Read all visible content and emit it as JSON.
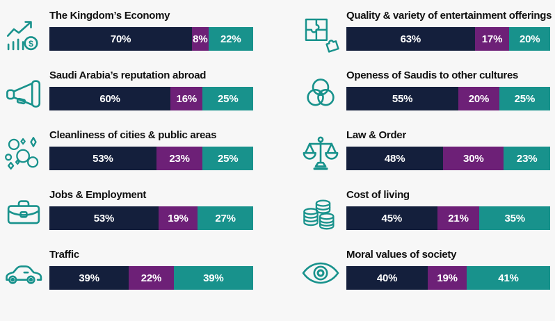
{
  "colors": {
    "background": "#F7F7F7",
    "title_text": "#101010",
    "value_text": "#FFFFFF",
    "icon": "#18928C",
    "segments": [
      "#141F3C",
      "#6D2077",
      "#18928C"
    ]
  },
  "chart_data": {
    "type": "bar",
    "variant": "horizontal-stacked-percentage",
    "legend_position": "none",
    "axes": "none",
    "value_suffix": "%",
    "columns": [
      {
        "name": "left",
        "rows": [
          {
            "title": "The Kingdom’s Economy",
            "icon": "economy-growth-chart-icon",
            "values": [
              70,
              8,
              22
            ],
            "labels": [
              "70%",
              "8%",
              "22%"
            ]
          },
          {
            "title": "Saudi Arabia’s reputation abroad",
            "icon": "megaphone-icon",
            "values": [
              60,
              16,
              25
            ],
            "labels": [
              "60%",
              "16%",
              "25%"
            ]
          },
          {
            "title": "Cleanliness of cities & public areas",
            "icon": "bubbles-icon",
            "values": [
              53,
              23,
              25
            ],
            "labels": [
              "53%",
              "23%",
              "25%"
            ]
          },
          {
            "title": "Jobs & Employment",
            "icon": "briefcase-icon",
            "values": [
              53,
              19,
              27
            ],
            "labels": [
              "53%",
              "19%",
              "27%"
            ]
          },
          {
            "title": "Traffic",
            "icon": "car-icon",
            "values": [
              39,
              22,
              39
            ],
            "labels": [
              "39%",
              "22%",
              "39%"
            ]
          }
        ]
      },
      {
        "name": "right",
        "rows": [
          {
            "title": "Quality & variety of entertainment offerings",
            "icon": "puzzle-icon",
            "values": [
              63,
              17,
              20
            ],
            "labels": [
              "63%",
              "17%",
              "20%"
            ]
          },
          {
            "title": "Openess of Saudis to other cultures",
            "icon": "venn-circles-icon",
            "values": [
              55,
              20,
              25
            ],
            "labels": [
              "55%",
              "20%",
              "25%"
            ]
          },
          {
            "title": "Law & Order",
            "icon": "scales-icon",
            "values": [
              48,
              30,
              23
            ],
            "labels": [
              "48%",
              "30%",
              "23%"
            ]
          },
          {
            "title": "Cost of living",
            "icon": "coins-icon",
            "values": [
              45,
              21,
              35
            ],
            "labels": [
              "45%",
              "21%",
              "35%"
            ]
          },
          {
            "title": "Moral values of society",
            "icon": "eye-icon",
            "values": [
              40,
              19,
              41
            ],
            "labels": [
              "40%",
              "19%",
              "41%"
            ]
          }
        ]
      }
    ]
  }
}
